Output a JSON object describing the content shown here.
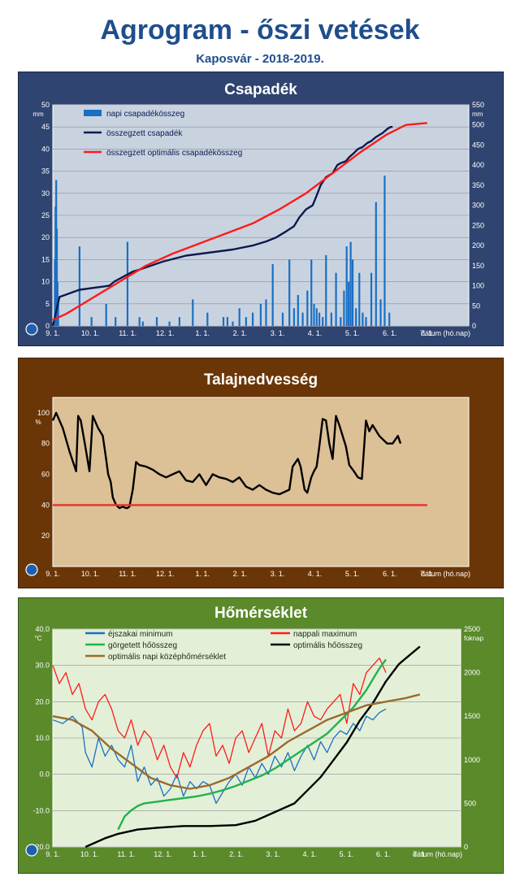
{
  "title": "Agrogram - őszi vetések",
  "subtitle": "Kaposvár  - 2018-2019.",
  "x_ticks": [
    "9. 1.",
    "10. 1.",
    "11. 1.",
    "12. 1.",
    "1. 1.",
    "2. 1.",
    "3. 1.",
    "4. 1.",
    "5. 1.",
    "6. 1.",
    "7. 1."
  ],
  "x_axis_label": "dátum (hó.nap)",
  "colors": {
    "precip_bg": "#2f4470",
    "soil_bg": "#6b3607",
    "temp_bg": "#5a8a2a"
  },
  "chart_data": [
    {
      "type": "bar",
      "title": "Csapadék",
      "ylabel": "mm",
      "y2label": "mm",
      "ylim": [
        0,
        50
      ],
      "y2lim": [
        0,
        550
      ],
      "yticks": [
        0,
        5,
        10,
        15,
        20,
        25,
        30,
        35,
        40,
        45,
        50
      ],
      "y2ticks": [
        0,
        50,
        100,
        150,
        200,
        250,
        300,
        350,
        400,
        450,
        500,
        550
      ],
      "legend_position": "top-left",
      "grid": true,
      "legend": [
        "napi csapadékösszeg",
        "összegzett csapadék",
        "összegzett optimális csapadékösszeg"
      ],
      "series": [
        {
          "name": "napi csapadékösszeg",
          "type": "bar",
          "axis": "left",
          "color": "#1a6fc4",
          "x": [
            3,
            4,
            5,
            6,
            7,
            8,
            40,
            58,
            80,
            94,
            112,
            130,
            135,
            156,
            175,
            190,
            210,
            232,
            256,
            262,
            270,
            280,
            290,
            300,
            312,
            320,
            330,
            345,
            355,
            362,
            368,
            375,
            382,
            388,
            392,
            396,
            400,
            405,
            410,
            418,
            425,
            432,
            437,
            441,
            444,
            447,
            450,
            455,
            460,
            465,
            470,
            478,
            485,
            492,
            498,
            505
          ],
          "values": [
            15,
            27,
            33,
            22,
            10,
            5,
            18,
            2,
            5,
            2,
            19,
            2,
            1,
            2,
            1,
            2,
            6,
            3,
            2,
            2,
            1,
            4,
            2,
            3,
            5,
            6,
            14,
            3,
            15,
            4,
            7,
            3,
            8,
            15,
            5,
            4,
            3,
            2,
            16,
            3,
            12,
            2,
            8,
            18,
            10,
            19,
            15,
            4,
            12,
            3,
            2,
            12,
            28,
            6,
            34,
            3
          ]
        },
        {
          "name": "összegzett csapadék",
          "type": "line",
          "axis": "right",
          "color": "#0c1a4f",
          "x": [
            0,
            10,
            40,
            85,
            92,
            120,
            130,
            165,
            200,
            270,
            300,
            320,
            335,
            350,
            362,
            370,
            380,
            390,
            395,
            402,
            410,
            420,
            427,
            432,
            440,
            445,
            452,
            458,
            465,
            472,
            478,
            485,
            490,
            495,
            502,
            507,
            510
          ],
          "values": [
            0,
            72,
            90,
            100,
            110,
            135,
            140,
            160,
            175,
            190,
            200,
            210,
            220,
            235,
            248,
            270,
            290,
            300,
            320,
            350,
            370,
            380,
            400,
            405,
            410,
            420,
            430,
            440,
            445,
            455,
            460,
            470,
            475,
            480,
            490,
            495,
            495
          ]
        },
        {
          "name": "összegzett optimális csapadékösszeg",
          "type": "line",
          "axis": "right",
          "color": "#ff1a1a",
          "x": [
            0,
            20,
            60,
            100,
            140,
            180,
            220,
            260,
            300,
            340,
            380,
            420,
            460,
            500,
            530,
            562
          ],
          "values": [
            15,
            30,
            70,
            110,
            150,
            180,
            205,
            230,
            255,
            290,
            330,
            380,
            430,
            475,
            500,
            505
          ]
        }
      ]
    },
    {
      "type": "line",
      "title": "Talajnedvesség",
      "ylabel": "%",
      "ylim": [
        0,
        110
      ],
      "yticks": [
        20,
        40,
        60,
        80,
        100
      ],
      "grid": false,
      "series": [
        {
          "name": "",
          "color": "#000000",
          "x": [
            0,
            5,
            15,
            25,
            35,
            38,
            42,
            48,
            55,
            60,
            68,
            75,
            80,
            83,
            87,
            90,
            95,
            100,
            105,
            110,
            112,
            115,
            120,
            125,
            130,
            140,
            150,
            160,
            170,
            180,
            190,
            200,
            210,
            220,
            230,
            240,
            250,
            260,
            270,
            280,
            290,
            300,
            310,
            320,
            330,
            340,
            355,
            360,
            368,
            372,
            378,
            382,
            388,
            392,
            396,
            400,
            405,
            410,
            415,
            420,
            425,
            430,
            440,
            445,
            452,
            458,
            464,
            470,
            475,
            480,
            490,
            497,
            502,
            510,
            518,
            522
          ],
          "values": [
            95,
            100,
            90,
            75,
            62,
            98,
            95,
            80,
            62,
            98,
            90,
            85,
            70,
            60,
            55,
            45,
            40,
            38,
            39,
            38,
            38,
            39,
            50,
            68,
            66,
            65,
            63,
            60,
            58,
            60,
            62,
            56,
            55,
            60,
            53,
            60,
            58,
            57,
            55,
            58,
            52,
            50,
            53,
            50,
            48,
            47,
            50,
            65,
            70,
            65,
            50,
            48,
            58,
            62,
            65,
            78,
            96,
            95,
            80,
            70,
            98,
            92,
            78,
            66,
            62,
            58,
            57,
            95,
            88,
            92,
            85,
            82,
            80,
            80,
            85,
            80
          ]
        },
        {
          "name": "",
          "color": "#e8302a",
          "x": [
            0,
            562
          ],
          "values": [
            40,
            40
          ]
        }
      ]
    },
    {
      "type": "line",
      "title": "Hőmérséklet",
      "ylabel": "°C",
      "y2label": "foknap",
      "ylim": [
        -20,
        40
      ],
      "y2lim": [
        0,
        2500
      ],
      "yticks": [
        -20,
        -10,
        0,
        10,
        20,
        30,
        40
      ],
      "y2ticks": [
        0,
        500,
        1000,
        1500,
        2000,
        2500
      ],
      "legend_position": "top",
      "grid": true,
      "legend": [
        "éjszakai minimum",
        "nappali maximum",
        "görgetett hőösszeg",
        "optimális hőösszeg",
        "optimális napi középhőmérséklet"
      ],
      "series": [
        {
          "name": "éjszakai minimum",
          "axis": "left",
          "color": "#1a6fc4",
          "x": [
            0,
            15,
            30,
            45,
            50,
            60,
            70,
            80,
            90,
            100,
            110,
            120,
            130,
            140,
            150,
            160,
            170,
            180,
            190,
            200,
            210,
            220,
            230,
            240,
            250,
            260,
            270,
            280,
            290,
            300,
            310,
            320,
            330,
            340,
            350,
            360,
            370,
            380,
            390,
            400,
            410,
            420,
            430,
            440,
            450,
            460,
            470,
            480,
            490,
            500,
            510
          ],
          "values": [
            15,
            14,
            16,
            13,
            6,
            2,
            10,
            5,
            8,
            4,
            2,
            8,
            -2,
            2,
            -3,
            -1,
            -6,
            -4,
            0,
            -6,
            -2,
            -4,
            -2,
            -3,
            -8,
            -5,
            -2,
            0,
            -3,
            2,
            -1,
            3,
            0,
            5,
            2,
            6,
            1,
            5,
            8,
            4,
            9,
            6,
            10,
            12,
            11,
            14,
            12,
            16,
            15,
            17,
            18
          ]
        },
        {
          "name": "nappali maximum",
          "axis": "left",
          "color": "#ff1a1a",
          "x": [
            0,
            10,
            20,
            30,
            40,
            50,
            60,
            70,
            80,
            90,
            100,
            110,
            120,
            130,
            140,
            150,
            160,
            170,
            180,
            190,
            200,
            210,
            220,
            230,
            240,
            250,
            260,
            270,
            280,
            290,
            300,
            310,
            320,
            330,
            340,
            350,
            360,
            370,
            380,
            390,
            400,
            410,
            420,
            430,
            440,
            450,
            460,
            470,
            480,
            490,
            500,
            510
          ],
          "values": [
            30,
            25,
            28,
            22,
            25,
            18,
            15,
            20,
            22,
            18,
            12,
            10,
            15,
            8,
            12,
            10,
            4,
            8,
            2,
            -1,
            6,
            2,
            8,
            12,
            14,
            5,
            8,
            3,
            10,
            12,
            6,
            10,
            14,
            5,
            12,
            10,
            18,
            12,
            14,
            20,
            16,
            15,
            18,
            20,
            22,
            14,
            25,
            22,
            28,
            30,
            32,
            28
          ]
        },
        {
          "name": "görgetett hőösszeg",
          "axis": "right",
          "color": "#22b24c",
          "x": [
            100,
            110,
            120,
            130,
            140,
            160,
            180,
            200,
            220,
            240,
            260,
            280,
            300,
            320,
            340,
            360,
            380,
            400,
            420,
            440,
            460,
            480,
            500,
            510
          ],
          "values": [
            200,
            350,
            420,
            470,
            500,
            520,
            540,
            560,
            580,
            610,
            650,
            700,
            760,
            820,
            900,
            1000,
            1100,
            1200,
            1300,
            1450,
            1600,
            1800,
            2050,
            2150
          ]
        },
        {
          "name": "optimális hőösszeg",
          "axis": "right",
          "color": "#000000",
          "x": [
            50,
            80,
            100,
            130,
            160,
            200,
            240,
            280,
            310,
            340,
            370,
            390,
            410,
            430,
            450,
            470,
            490,
            510,
            530,
            562
          ],
          "values": [
            0,
            100,
            150,
            200,
            220,
            240,
            240,
            250,
            300,
            400,
            500,
            650,
            800,
            1000,
            1200,
            1450,
            1650,
            1900,
            2100,
            2300
          ]
        },
        {
          "name": "optimális napi középhőmérséklet",
          "axis": "left",
          "color": "#9b6a2e",
          "x": [
            0,
            30,
            60,
            90,
            120,
            150,
            180,
            210,
            240,
            270,
            300,
            330,
            360,
            390,
            420,
            450,
            480,
            510,
            540,
            562
          ],
          "values": [
            16,
            15,
            12,
            7,
            3,
            -1,
            -3,
            -4,
            -3,
            -1,
            2,
            5,
            9,
            12,
            15,
            17,
            19,
            20,
            21,
            22
          ]
        }
      ]
    }
  ]
}
